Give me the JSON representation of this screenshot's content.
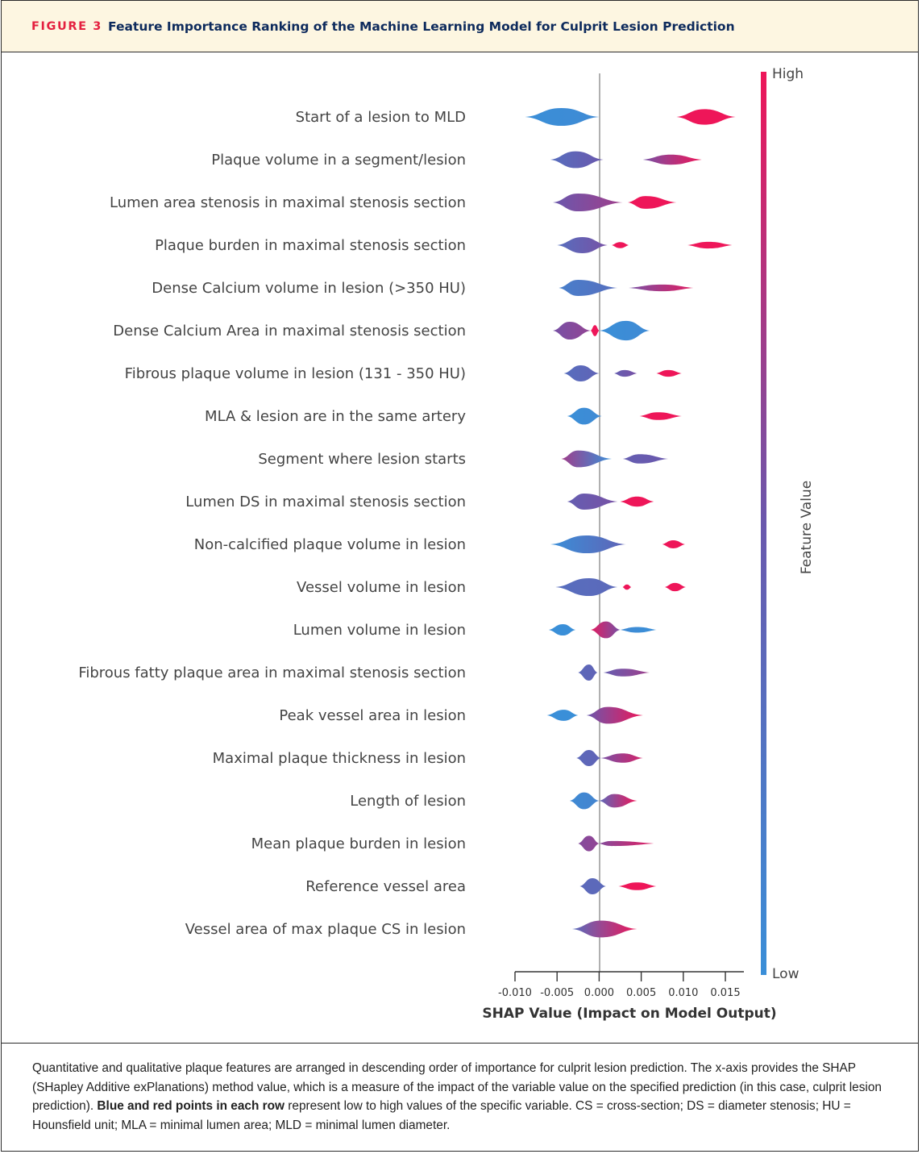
{
  "figure": {
    "number_label": "FIGURE 3",
    "title": "Feature Importance Ranking of the Machine Learning Model for Culprit Lesion Prediction"
  },
  "colors": {
    "low": "#3a8fd8",
    "high": "#ee1659",
    "mid": "#6a58ad",
    "zero_line": "#b0b0b0",
    "header_bg": "#fdf6e1",
    "figure_label": "#e4203f",
    "title_text": "#0d2a5c"
  },
  "chart_data": {
    "type": "beeswarm",
    "xlabel": "SHAP Value (Impact on Model Output)",
    "xlim": [
      -0.01,
      0.0172
    ],
    "xticks": [
      -0.01,
      -0.005,
      0.0,
      0.005,
      0.01,
      0.015
    ],
    "xtick_labels": [
      "-0.010",
      "-0.005",
      "0.000",
      "0.005",
      "0.010",
      "0.015"
    ],
    "colorbar": {
      "title": "Feature Value",
      "high_label": "High",
      "low_label": "Low"
    },
    "features": [
      {
        "name": "Start of a lesion to MLD",
        "clusters": [
          {
            "from": -0.0088,
            "to": 0.0,
            "peak": -0.0045,
            "width": 0.45,
            "color_from": 0.0,
            "color_to": 0.05
          },
          {
            "from": 0.0092,
            "to": 0.0162,
            "peak": 0.0125,
            "width": 0.38,
            "color_from": 1.0,
            "color_to": 1.0
          }
        ]
      },
      {
        "name": "Plaque volume in a segment/lesion",
        "clusters": [
          {
            "from": -0.0058,
            "to": 0.0005,
            "peak": -0.0028,
            "width": 0.42,
            "color_from": 0.3,
            "color_to": 0.5
          },
          {
            "from": 0.0052,
            "to": 0.0122,
            "peak": 0.0085,
            "width": 0.22,
            "color_from": 0.55,
            "color_to": 1.0
          }
        ]
      },
      {
        "name": "Lumen area stenosis in maximal stenosis section",
        "clusters": [
          {
            "from": -0.0055,
            "to": 0.0028,
            "peak": -0.0025,
            "width": 0.45,
            "color_from": 0.5,
            "color_to": 0.7
          },
          {
            "from": 0.0034,
            "to": 0.0092,
            "peak": 0.0055,
            "width": 0.3,
            "color_from": 1.0,
            "color_to": 1.0
          }
        ]
      },
      {
        "name": "Plaque burden in maximal stenosis section",
        "clusters": [
          {
            "from": -0.005,
            "to": 0.001,
            "peak": -0.002,
            "width": 0.4,
            "color_from": 0.3,
            "color_to": 0.55
          },
          {
            "from": 0.0015,
            "to": 0.0035,
            "peak": 0.0025,
            "width": 0.1,
            "color_from": 1.0,
            "color_to": 1.0
          },
          {
            "from": 0.0105,
            "to": 0.0158,
            "peak": 0.013,
            "width": 0.12,
            "color_from": 1.0,
            "color_to": 1.0
          }
        ]
      },
      {
        "name": "Dense Calcium volume in lesion (>350 HU)",
        "clusters": [
          {
            "from": -0.0048,
            "to": 0.0022,
            "peak": -0.0025,
            "width": 0.4,
            "color_from": 0.15,
            "color_to": 0.3
          },
          {
            "from": 0.0035,
            "to": 0.0112,
            "peak": 0.0075,
            "width": 0.12,
            "color_from": 0.55,
            "color_to": 0.95
          }
        ]
      },
      {
        "name": "Dense Calcium Area in maximal stenosis section",
        "clusters": [
          {
            "from": -0.0055,
            "to": -0.001,
            "peak": -0.0035,
            "width": 0.45,
            "color_from": 0.55,
            "color_to": 0.65
          },
          {
            "from": -0.001,
            "to": 0.0,
            "peak": -0.0005,
            "width": 0.25,
            "color_from": 1.0,
            "color_to": 1.0
          },
          {
            "from": 0.0,
            "to": 0.006,
            "peak": 0.0032,
            "width": 0.5,
            "color_from": 0.0,
            "color_to": 0.05
          }
        ]
      },
      {
        "name": "Fibrous plaque volume in lesion (131 - 350 HU)",
        "clusters": [
          {
            "from": -0.0042,
            "to": 0.0,
            "peak": -0.0022,
            "width": 0.4,
            "color_from": 0.3,
            "color_to": 0.4
          },
          {
            "from": 0.0018,
            "to": 0.0045,
            "peak": 0.003,
            "width": 0.12,
            "color_from": 0.45,
            "color_to": 0.55
          },
          {
            "from": 0.0068,
            "to": 0.0098,
            "peak": 0.0082,
            "width": 0.12,
            "color_from": 1.0,
            "color_to": 1.0
          }
        ]
      },
      {
        "name": "MLA & lesion are in the same artery",
        "clusters": [
          {
            "from": -0.0038,
            "to": 0.0003,
            "peak": -0.0018,
            "width": 0.42,
            "color_from": 0.0,
            "color_to": 0.05
          },
          {
            "from": 0.0048,
            "to": 0.0098,
            "peak": 0.007,
            "width": 0.15,
            "color_from": 1.0,
            "color_to": 1.0
          }
        ]
      },
      {
        "name": "Segment where lesion starts",
        "clusters": [
          {
            "from": -0.0045,
            "to": 0.0015,
            "peak": -0.0025,
            "width": 0.42,
            "color_from": 0.7,
            "color_to": 0.0
          },
          {
            "from": 0.0028,
            "to": 0.0082,
            "peak": 0.0048,
            "width": 0.2,
            "color_from": 0.45,
            "color_to": 0.5
          }
        ]
      },
      {
        "name": "Lumen DS in maximal stenosis section",
        "clusters": [
          {
            "from": -0.0038,
            "to": 0.0022,
            "peak": -0.0018,
            "width": 0.4,
            "color_from": 0.45,
            "color_to": 0.55
          },
          {
            "from": 0.0025,
            "to": 0.0065,
            "peak": 0.0045,
            "width": 0.22,
            "color_from": 1.0,
            "color_to": 1.0
          }
        ]
      },
      {
        "name": "Non-calcified plaque volume in lesion",
        "clusters": [
          {
            "from": -0.0058,
            "to": 0.0032,
            "peak": -0.0015,
            "width": 0.45,
            "color_from": 0.0,
            "color_to": 0.4
          },
          {
            "from": 0.0075,
            "to": 0.0102,
            "peak": 0.0088,
            "width": 0.16,
            "color_from": 1.0,
            "color_to": 1.0
          }
        ]
      },
      {
        "name": "Vessel volume in lesion",
        "clusters": [
          {
            "from": -0.0052,
            "to": 0.0022,
            "peak": -0.0012,
            "width": 0.45,
            "color_from": 0.3,
            "color_to": 0.35
          },
          {
            "from": 0.0028,
            "to": 0.0038,
            "peak": 0.0033,
            "width": 0.08,
            "color_from": 1.0,
            "color_to": 1.0
          },
          {
            "from": 0.0078,
            "to": 0.0103,
            "peak": 0.009,
            "width": 0.17,
            "color_from": 1.0,
            "color_to": 1.0
          }
        ]
      },
      {
        "name": "Lumen volume in lesion",
        "clusters": [
          {
            "from": -0.006,
            "to": -0.0028,
            "peak": -0.0043,
            "width": 0.26,
            "color_from": 0.0,
            "color_to": 0.0
          },
          {
            "from": -0.001,
            "to": 0.0025,
            "peak": 0.0008,
            "width": 0.42,
            "color_from": 0.95,
            "color_to": 0.55
          },
          {
            "from": 0.0025,
            "to": 0.0068,
            "peak": 0.0045,
            "width": 0.09,
            "color_from": 0.05,
            "color_to": 0.0
          }
        ]
      },
      {
        "name": "Fibrous fatty plaque area in maximal stenosis section",
        "clusters": [
          {
            "from": -0.0025,
            "to": -0.0002,
            "peak": -0.0012,
            "width": 0.4,
            "color_from": 0.35,
            "color_to": 0.4
          },
          {
            "from": 0.0005,
            "to": 0.006,
            "peak": 0.0028,
            "width": 0.15,
            "color_from": 0.45,
            "color_to": 0.7
          }
        ]
      },
      {
        "name": "Peak vessel area in lesion",
        "clusters": [
          {
            "from": -0.0062,
            "to": -0.0025,
            "peak": -0.0042,
            "width": 0.25,
            "color_from": 0.0,
            "color_to": 0.0
          },
          {
            "from": -0.0015,
            "to": 0.0052,
            "peak": 0.001,
            "width": 0.42,
            "color_from": 0.5,
            "color_to": 1.0
          }
        ]
      },
      {
        "name": "Maximal plaque thickness in lesion",
        "clusters": [
          {
            "from": -0.0027,
            "to": 0.0002,
            "peak": -0.0012,
            "width": 0.4,
            "color_from": 0.35,
            "color_to": 0.4
          },
          {
            "from": 0.0002,
            "to": 0.0052,
            "peak": 0.0028,
            "width": 0.2,
            "color_from": 0.55,
            "color_to": 0.9
          }
        ]
      },
      {
        "name": "Length of lesion",
        "clusters": [
          {
            "from": -0.0035,
            "to": 0.0,
            "peak": -0.0018,
            "width": 0.42,
            "color_from": 0.05,
            "color_to": 0.1
          },
          {
            "from": 0.0,
            "to": 0.0045,
            "peak": 0.0018,
            "width": 0.32,
            "color_from": 0.35,
            "color_to": 1.0
          }
        ]
      },
      {
        "name": "Mean plaque burden in lesion",
        "clusters": [
          {
            "from": -0.0025,
            "to": 0.0,
            "peak": -0.0012,
            "width": 0.38,
            "color_from": 0.6,
            "color_to": 0.65
          },
          {
            "from": 0.0,
            "to": 0.0065,
            "peak": 0.0015,
            "width": 0.07,
            "color_from": 0.6,
            "color_to": 0.95
          }
        ]
      },
      {
        "name": "Reference vessel area",
        "clusters": [
          {
            "from": -0.0023,
            "to": 0.0008,
            "peak": -0.0008,
            "width": 0.4,
            "color_from": 0.35,
            "color_to": 0.35
          },
          {
            "from": 0.0023,
            "to": 0.0068,
            "peak": 0.0045,
            "width": 0.15,
            "color_from": 1.0,
            "color_to": 1.0
          }
        ]
      },
      {
        "name": "Vessel area of max plaque CS in lesion",
        "clusters": [
          {
            "from": -0.0032,
            "to": 0.0045,
            "peak": 0.0002,
            "width": 0.42,
            "color_from": 0.3,
            "color_to": 1.0
          }
        ]
      }
    ]
  },
  "caption": {
    "text_a": "Quantitative and qualitative plaque features are arranged in descending order of importance for culprit lesion prediction. The x-axis provides the SHAP (SHapley Additive exPlanations) method value, which is a measure of the impact of the variable value on the specified prediction (in this case, culprit lesion prediction). ",
    "bold": "Blue and red points in each row",
    "text_b": " represent low to high values of the specific variable. CS = cross-section; DS = diameter stenosis; HU = Hounsfield unit; MLA = minimal lumen area; MLD = minimal lumen diameter."
  }
}
